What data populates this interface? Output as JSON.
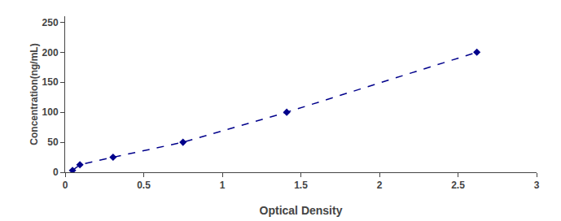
{
  "chart_data": {
    "type": "line",
    "x": [
      0.047,
      0.094,
      0.305,
      0.75,
      1.41,
      2.62
    ],
    "values": [
      3.125,
      12.5,
      25,
      50,
      100,
      200
    ],
    "xlabel": "Optical Density",
    "ylabel": "Concentration(ng/mL)",
    "color": "#00008B",
    "marker": "diamond",
    "line_style": "dashed",
    "xlim": [
      0,
      3.0
    ],
    "ylim": [
      0,
      260
    ],
    "xticks": [
      0,
      0.5,
      1,
      1.5,
      2,
      2.5,
      3
    ],
    "yticks": [
      0,
      50,
      100,
      150,
      200,
      250
    ],
    "grid": false
  }
}
